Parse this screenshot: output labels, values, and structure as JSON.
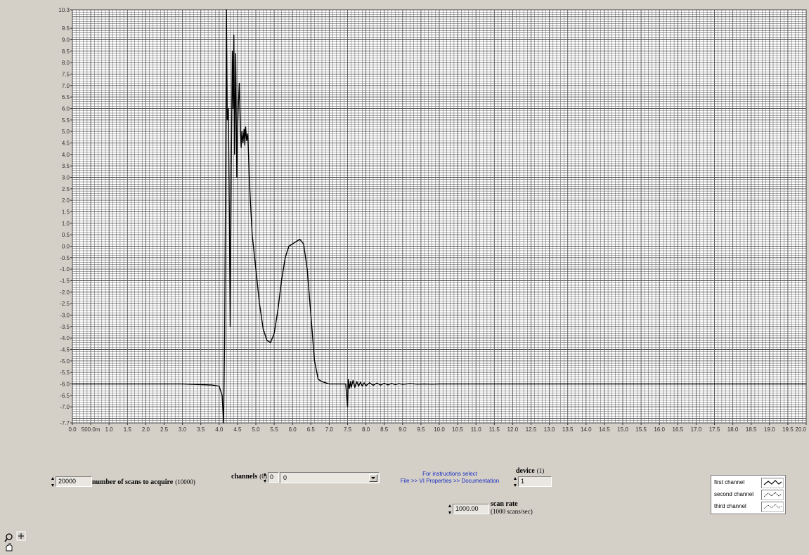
{
  "graph": {
    "x_ticks": [
      "0.0",
      "500.0m",
      "1.0",
      "1.5",
      "2.0",
      "2.5",
      "3.0",
      "3.5",
      "4.0",
      "4.5",
      "5.0",
      "5.5",
      "6.0",
      "6.5",
      "7.0",
      "7.5",
      "8.0",
      "8.5",
      "9.0",
      "9.5",
      "10.0",
      "10.5",
      "11.0",
      "11.5",
      "12.0",
      "12.5",
      "13.0",
      "13.5",
      "14.0",
      "14.5",
      "15.0",
      "15.5",
      "16.0",
      "16.5",
      "17.0",
      "17.5",
      "18.0",
      "18.5",
      "19.0",
      "19.5",
      "20.0"
    ],
    "y_ticks": [
      "10.3",
      "9.5",
      "9.0",
      "8.5",
      "8.0",
      "7.5",
      "7.0",
      "6.5",
      "6.0",
      "5.5",
      "5.0",
      "4.5",
      "4.0",
      "3.5",
      "3.0",
      "2.5",
      "2.0",
      "1.5",
      "1.0",
      "0.5",
      "0.0",
      "-0.5",
      "-1.0",
      "-1.5",
      "-2.0",
      "-2.5",
      "-3.0",
      "-3.5",
      "-4.0",
      "-4.5",
      "-5.0",
      "-5.5",
      "-6.0",
      "-6.5",
      "-7.0",
      "-7.7"
    ]
  },
  "chart_data": {
    "type": "line",
    "xlim": [
      0,
      20
    ],
    "ylim": [
      -7.7,
      10.3
    ],
    "grid": true,
    "series": [
      {
        "x": [
          0,
          1,
          2,
          3,
          3.8,
          4.0,
          4.08,
          4.12,
          4.15,
          4.18,
          4.2,
          4.22,
          4.25,
          4.28,
          4.3,
          4.33,
          4.36,
          4.38,
          4.4,
          4.42,
          4.45,
          4.48,
          4.5,
          4.52,
          4.55,
          4.58,
          4.6,
          4.62,
          4.65,
          4.68,
          4.7,
          4.72,
          4.75,
          4.78,
          4.8,
          4.82,
          4.85,
          4.9,
          5.0,
          5.1,
          5.2,
          5.3,
          5.4,
          5.5,
          5.6,
          5.7,
          5.8,
          5.9,
          6.0,
          6.1,
          6.2,
          6.3,
          6.4,
          6.5,
          6.6,
          6.7,
          6.8,
          7.0,
          7.2,
          7.45,
          7.5,
          7.52,
          7.55,
          7.58,
          7.6,
          7.65,
          7.7,
          7.75,
          7.8,
          7.85,
          7.9,
          7.95,
          8.0,
          8.1,
          8.2,
          8.3,
          8.4,
          8.5,
          8.6,
          8.7,
          8.8,
          8.9,
          9.0,
          9.2,
          9.4,
          9.6,
          9.8,
          10.0,
          10.5,
          11.0,
          12.0,
          14.0,
          16.0,
          18.0,
          20.0
        ],
        "y": [
          -6.0,
          -6.0,
          -6.0,
          -6.0,
          -6.05,
          -6.1,
          -6.5,
          -7.7,
          -4.0,
          4.0,
          10.3,
          5.5,
          6.0,
          1.0,
          -3.5,
          3.5,
          8.5,
          6.0,
          9.2,
          4.0,
          8.4,
          3.0,
          5.0,
          6.0,
          7.1,
          5.0,
          4.3,
          5.0,
          4.5,
          5.1,
          4.4,
          5.2,
          4.6,
          4.9,
          4.0,
          3.0,
          2.0,
          0.5,
          -1.0,
          -2.5,
          -3.6,
          -4.1,
          -4.2,
          -3.8,
          -2.8,
          -1.5,
          -0.5,
          0.0,
          0.1,
          0.2,
          0.3,
          0.1,
          -1.0,
          -3.0,
          -5.0,
          -5.8,
          -5.9,
          -6.0,
          -6.0,
          -6.0,
          -7.0,
          -5.8,
          -6.2,
          -5.9,
          -6.15,
          -5.85,
          -6.15,
          -5.9,
          -6.1,
          -5.92,
          -6.1,
          -5.95,
          -6.08,
          -5.95,
          -6.06,
          -5.96,
          -6.05,
          -5.97,
          -6.04,
          -5.98,
          -6.03,
          -5.99,
          -6.02,
          -5.99,
          -6.01,
          -6.0,
          -6.01,
          -6.0,
          -6.0,
          -6.0,
          -6.0,
          -6.0,
          -6.0,
          -6.0,
          -6.0
        ]
      }
    ]
  },
  "controls": {
    "scans_value": "20000",
    "scans_label": "number of scans to acquire",
    "scans_default": "(10000)",
    "channels_label": "channels",
    "channels_default": "(0)",
    "channels_index": "0",
    "channels_ring_text": "0",
    "instructions_line1": "For instructions select",
    "instructions_line2": "File >> VI Properties >> Documentation",
    "device_label": "device",
    "device_default": "(1)",
    "device_value": "1",
    "scan_rate_value": "1000.00",
    "scan_rate_label": "scan rate",
    "scan_rate_default": "(1000 scans/sec)"
  },
  "legend": {
    "items": [
      "first channel",
      "second channel",
      "third channel"
    ]
  },
  "tools": {
    "zoom_icon": "magnifier-icon",
    "cursor_icon": "crosshair-icon",
    "pan_icon": "hand-icon"
  },
  "colors": {
    "panel": "#d4d0c8",
    "plot_bg": "#ffffff",
    "grid": "#555555",
    "trace": "#000000",
    "link_text": "#1a2ec0"
  }
}
